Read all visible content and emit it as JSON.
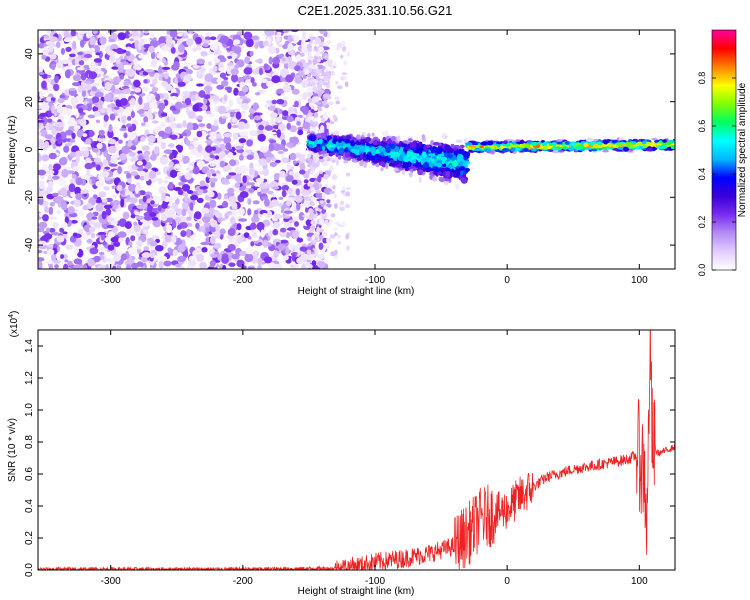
{
  "figure": {
    "title": "C2E1.2025.331.10.56.G21"
  },
  "chart_data": [
    {
      "type": "heatmap",
      "xlabel": "Height of straight line (km)",
      "ylabel": "Frequency (Hz)",
      "xlim": [
        -355,
        127
      ],
      "ylim": [
        -50,
        50
      ],
      "x_ticks": [
        -300,
        -200,
        -100,
        0,
        100
      ],
      "y_ticks": [
        -40,
        -20,
        0,
        20,
        40
      ],
      "colorbar": {
        "label": "Normalized spectral amplitude",
        "range": [
          0,
          1
        ],
        "ticks": [
          0.0,
          0.2,
          0.4,
          0.6,
          0.8
        ],
        "tick_labels": [
          "0.0",
          "0.2",
          "0.4",
          "0.6",
          "0.8"
        ],
        "colormap": [
          "#ffffff",
          "#e2ccff",
          "#b48cf5",
          "#7a2cf0",
          "#3a00d8",
          "#0000ff",
          "#00b8ff",
          "#00ffff",
          "#00ff60",
          "#80ff00",
          "#ffff00",
          "#ff8000",
          "#ff0000",
          "#ff00a0"
        ]
      },
      "regions": [
        {
          "name": "noise",
          "x_range": [
            -355,
            -135
          ],
          "y_range": [
            -50,
            50
          ],
          "amplitude": [
            0.02,
            0.25
          ]
        },
        {
          "name": "fade",
          "x_range": [
            -150,
            -120
          ],
          "y_range": [
            -45,
            45
          ],
          "amplitude": [
            0.02,
            0.1
          ]
        },
        {
          "name": "signal-turbulent",
          "x_range": [
            -150,
            -30
          ],
          "freq_center": [
            3,
            -6
          ],
          "freq_spread": [
            5,
            12
          ],
          "amplitude": [
            0.2,
            0.55
          ]
        },
        {
          "name": "signal-stable",
          "x_range": [
            -30,
            127
          ],
          "freq_center": [
            1,
            2
          ],
          "freq_spread": [
            3,
            3
          ],
          "amplitude": [
            0.6,
            0.85
          ]
        }
      ]
    },
    {
      "type": "line",
      "xlabel": "Height of straight line (km)",
      "ylabel": "SNR (10 * v/v)",
      "y_multiplier": "(x10",
      "y_multiplier_exp": "4",
      "y_multiplier_close": ")",
      "xlim": [
        -355,
        127
      ],
      "ylim": [
        0,
        1.5
      ],
      "x_ticks": [
        -300,
        -200,
        -100,
        0,
        100
      ],
      "y_ticks": [
        0.0,
        0.2,
        0.4,
        0.6,
        0.8,
        1.0,
        1.2,
        1.4
      ],
      "y_tick_labels": [
        "0.0",
        "0.2",
        "0.4",
        "0.6",
        "0.8",
        "1.0",
        "1.2",
        "1.4"
      ],
      "color": "#ee2222",
      "x": [
        -355,
        -300,
        -200,
        -130,
        -110,
        -100,
        -80,
        -60,
        -40,
        -30,
        -20,
        -10,
        0,
        10,
        20,
        30,
        50,
        70,
        90,
        100,
        104,
        106,
        108,
        110,
        115,
        127
      ],
      "y": [
        0.005,
        0.005,
        0.005,
        0.01,
        0.03,
        0.05,
        0.07,
        0.1,
        0.15,
        0.22,
        0.32,
        0.35,
        0.38,
        0.46,
        0.52,
        0.58,
        0.63,
        0.66,
        0.69,
        0.72,
        0.6,
        0.25,
        1.45,
        0.75,
        0.73,
        0.77
      ],
      "noise": [
        {
          "x_range": [
            -355,
            -130
          ],
          "amp": 0.012
        },
        {
          "x_range": [
            -130,
            -40
          ],
          "amp": 0.06
        },
        {
          "x_range": [
            -40,
            -10
          ],
          "amp": 0.2
        },
        {
          "x_range": [
            -10,
            20
          ],
          "amp": 0.13
        },
        {
          "x_range": [
            20,
            98
          ],
          "amp": 0.035
        },
        {
          "x_range": [
            98,
            112
          ],
          "amp": 0.35
        },
        {
          "x_range": [
            112,
            127
          ],
          "amp": 0.02
        }
      ]
    }
  ]
}
